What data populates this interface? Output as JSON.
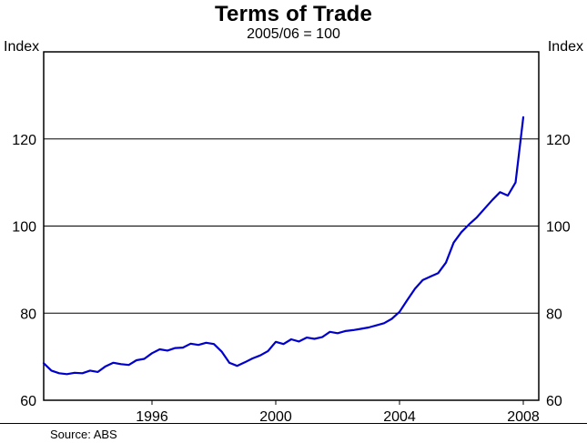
{
  "chart_data": {
    "type": "line",
    "title": "Terms of Trade",
    "subtitle": "2005/06 = 100",
    "ylabel_left": "Index",
    "ylabel_right": "Index",
    "source": "Source: ABS",
    "line_color": "#0000cd",
    "xlim": [
      1992.5,
      2008.5
    ],
    "ylim": [
      60,
      140
    ],
    "xticks": [
      1996,
      2000,
      2004,
      2008
    ],
    "yticks": [
      60,
      80,
      100,
      120
    ],
    "grid": "horizontal",
    "legend": "none",
    "x": [
      1992.5,
      1992.75,
      1993.0,
      1993.25,
      1993.5,
      1993.75,
      1994.0,
      1994.25,
      1994.5,
      1994.75,
      1995.0,
      1995.25,
      1995.5,
      1995.75,
      1996.0,
      1996.25,
      1996.5,
      1996.75,
      1997.0,
      1997.25,
      1997.5,
      1997.75,
      1998.0,
      1998.25,
      1998.5,
      1998.75,
      1999.0,
      1999.25,
      1999.5,
      1999.75,
      2000.0,
      2000.25,
      2000.5,
      2000.75,
      2001.0,
      2001.25,
      2001.5,
      2001.75,
      2002.0,
      2002.25,
      2002.5,
      2002.75,
      2003.0,
      2003.25,
      2003.5,
      2003.75,
      2004.0,
      2004.25,
      2004.5,
      2004.75,
      2005.0,
      2005.25,
      2005.5,
      2005.75,
      2006.0,
      2006.25,
      2006.5,
      2006.75,
      2007.0,
      2007.25,
      2007.5,
      2007.75,
      2008.0
    ],
    "values": [
      68.5,
      66.8,
      66.2,
      66.0,
      66.3,
      66.2,
      66.8,
      66.5,
      67.8,
      68.6,
      68.3,
      68.1,
      69.2,
      69.5,
      70.8,
      71.7,
      71.4,
      72.0,
      72.1,
      73.0,
      72.7,
      73.2,
      72.9,
      71.2,
      68.6,
      67.9,
      68.7,
      69.6,
      70.3,
      71.3,
      73.4,
      72.9,
      74.0,
      73.5,
      74.4,
      74.1,
      74.5,
      75.7,
      75.4,
      75.9,
      76.1,
      76.4,
      76.7,
      77.2,
      77.7,
      78.7,
      80.3,
      83.0,
      85.6,
      87.6,
      88.4,
      89.2,
      91.6,
      96.2,
      98.6,
      100.4,
      102.0,
      104.0,
      106.0,
      107.8,
      107.0,
      110.0,
      125.0
    ]
  }
}
